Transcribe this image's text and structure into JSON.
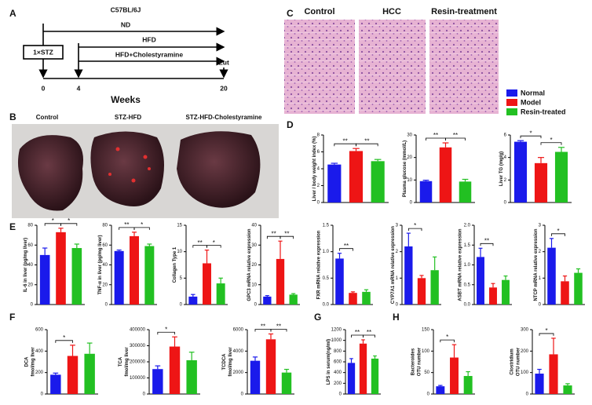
{
  "panel_labels": [
    "A",
    "B",
    "C",
    "D",
    "E",
    "F",
    "G",
    "H"
  ],
  "timeline": {
    "strain": "C57BL/6J",
    "arms": [
      "ND",
      "HFD",
      "HFD+Cholestyramine"
    ],
    "injection": "1×STZ",
    "endpoint": "Eut",
    "weeks": [
      0,
      4,
      20
    ],
    "axis_label": "Weeks"
  },
  "photos": {
    "labels": [
      "Control",
      "STZ-HFD",
      "STZ-HFD-Cholestyramine"
    ]
  },
  "histology": {
    "labels": [
      "Control",
      "HCC",
      "Resin-treatment"
    ]
  },
  "legend": {
    "series": [
      {
        "name": "Normal",
        "color": "#1a1aeb"
      },
      {
        "name": "Model",
        "color": "#ee1515"
      },
      {
        "name": "Resin-treated",
        "color": "#22c022"
      }
    ]
  },
  "chart_data": [
    {
      "type": "bar",
      "ylabel": [
        "Liver / body weight index (%)"
      ],
      "values": [
        4.5,
        6.1,
        4.9
      ],
      "errors": [
        0.15,
        0.3,
        0.2
      ],
      "ylim": [
        0,
        8
      ],
      "yticks": [
        0,
        2,
        4,
        6,
        8
      ],
      "significance": [
        {
          "label": "**",
          "from": 0,
          "to": 1
        },
        {
          "label": "**",
          "from": 1,
          "to": 2
        }
      ]
    },
    {
      "type": "bar",
      "ylabel": [
        "Plasma glucose (mmol/L)"
      ],
      "values": [
        9.5,
        24.5,
        9.3
      ],
      "errors": [
        0.4,
        2,
        1
      ],
      "ylim": [
        0,
        30
      ],
      "yticks": [
        0,
        10,
        20,
        30
      ],
      "significance": [
        {
          "label": "**",
          "from": 0,
          "to": 1
        },
        {
          "label": "**",
          "from": 1,
          "to": 2
        }
      ]
    },
    {
      "type": "bar",
      "ylabel": [
        "Liver TG (mg/g)"
      ],
      "values": [
        5.4,
        3.5,
        4.5
      ],
      "errors": [
        0.1,
        0.5,
        0.4
      ],
      "ylim": [
        0,
        6
      ],
      "yticks": [
        0,
        2,
        4,
        6
      ],
      "significance": [
        {
          "label": "*",
          "from": 0,
          "to": 1
        },
        {
          "label": "*",
          "from": 1,
          "to": 2
        }
      ]
    },
    {
      "type": "bar",
      "ylabel": [
        "IL-6 in liver (pg/mg liver)"
      ],
      "values": [
        50,
        73,
        57
      ],
      "errors": [
        7,
        4,
        4
      ],
      "ylim": [
        0,
        80
      ],
      "yticks": [
        0,
        20,
        40,
        60,
        80
      ],
      "significance": [
        {
          "label": "*",
          "from": 0,
          "to": 1
        },
        {
          "label": "*",
          "from": 1,
          "to": 2
        }
      ]
    },
    {
      "type": "bar",
      "ylabel": [
        "TNF-α in liver (pg/mg liver)"
      ],
      "values": [
        54,
        69,
        59
      ],
      "errors": [
        1,
        4,
        2
      ],
      "ylim": [
        0,
        80
      ],
      "yticks": [
        0,
        20,
        40,
        60,
        80
      ],
      "significance": [
        {
          "label": "**",
          "from": 0,
          "to": 1
        },
        {
          "label": "*",
          "from": 1,
          "to": 2
        }
      ]
    },
    {
      "type": "bar",
      "ylabel": [
        "Collagen Type 1"
      ],
      "values": [
        1.5,
        7.8,
        4
      ],
      "errors": [
        0.4,
        2.5,
        1
      ],
      "ylim": [
        0,
        15
      ],
      "yticks": [
        0,
        5,
        10,
        15
      ],
      "significance": [
        {
          "label": "**",
          "from": 0,
          "to": 1
        },
        {
          "label": "*",
          "from": 1,
          "to": 2
        }
      ]
    },
    {
      "type": "bar",
      "ylabel": [
        "GPC3 mRNA relative expression"
      ],
      "values": [
        4,
        23,
        5
      ],
      "errors": [
        0.5,
        9,
        0.5
      ],
      "ylim": [
        0,
        40
      ],
      "yticks": [
        0,
        10,
        20,
        30,
        40
      ],
      "significance": [
        {
          "label": "**",
          "from": 0,
          "to": 1
        },
        {
          "label": "**",
          "from": 1,
          "to": 2
        }
      ]
    },
    {
      "type": "bar",
      "ylabel": [
        "FXR mRNA relative expression"
      ],
      "values": [
        0.87,
        0.22,
        0.24
      ],
      "errors": [
        0.1,
        0.02,
        0.04
      ],
      "ylim": [
        0,
        1.5
      ],
      "yticks": [
        {
          "value": 0,
          "label": "0.0"
        },
        0.5,
        {
          "value": 1,
          "label": "1.0"
        },
        1.5
      ],
      "significance": [
        {
          "label": "**",
          "from": 0,
          "to": 1
        }
      ]
    },
    {
      "type": "bar",
      "ylabel": [
        "CYP7A1 mRNA relative expression"
      ],
      "values": [
        2.2,
        1.0,
        1.3
      ],
      "errors": [
        0.5,
        0.1,
        0.5
      ],
      "ylim": [
        0,
        3
      ],
      "yticks": [
        0,
        1,
        2,
        3
      ],
      "significance": [
        {
          "label": "*",
          "from": 0,
          "to": 1
        }
      ]
    },
    {
      "type": "bar",
      "ylabel": [
        "ASBT mRNA relative expression"
      ],
      "values": [
        1.2,
        0.43,
        0.62
      ],
      "errors": [
        0.22,
        0.1,
        0.1
      ],
      "ylim": [
        0,
        2
      ],
      "yticks": [
        {
          "value": 0,
          "label": "0.0"
        },
        0.5,
        {
          "value": 1,
          "label": "1.0"
        },
        1.5,
        {
          "value": 2,
          "label": "2.0"
        }
      ],
      "significance": [
        {
          "label": "**",
          "from": 0,
          "to": 1
        }
      ]
    },
    {
      "type": "bar",
      "ylabel": [
        "NTCP mRNA relative expression"
      ],
      "values": [
        2.15,
        0.88,
        1.2
      ],
      "errors": [
        0.35,
        0.2,
        0.15
      ],
      "ylim": [
        0,
        3
      ],
      "yticks": [
        0,
        1,
        2,
        3
      ],
      "significance": [
        {
          "label": "*",
          "from": 0,
          "to": 1
        }
      ]
    },
    {
      "type": "bar",
      "ylabel": [
        "DCA",
        "fmol/mg liver"
      ],
      "values": [
        180,
        355,
        375
      ],
      "errors": [
        15,
        100,
        100
      ],
      "ylim": [
        0,
        600
      ],
      "yticks": [
        0,
        200,
        400,
        600
      ],
      "significance": [
        {
          "label": "*",
          "from": 0,
          "to": 1
        }
      ]
    },
    {
      "type": "bar",
      "ylabel": [
        "TCA",
        "fmol/mg liver"
      ],
      "values": [
        155000,
        295000,
        210000
      ],
      "errors": [
        20000,
        60000,
        50000
      ],
      "ylim": [
        0,
        400000
      ],
      "yticks": [
        0,
        100000,
        200000,
        300000,
        400000
      ],
      "significance": [
        {
          "label": "*",
          "from": 0,
          "to": 1
        }
      ]
    },
    {
      "type": "bar",
      "ylabel": [
        "TCDCA",
        "fmol/mg liver"
      ],
      "values": [
        3100,
        5100,
        2000
      ],
      "errors": [
        350,
        500,
        300
      ],
      "ylim": [
        0,
        6000
      ],
      "yticks": [
        0,
        2000,
        4000,
        6000
      ],
      "significance": [
        {
          "label": "**",
          "from": 0,
          "to": 1
        },
        {
          "label": "**",
          "from": 1,
          "to": 2
        }
      ]
    },
    {
      "type": "bar",
      "ylabel": [
        "LPS in serum(ng/ml)"
      ],
      "values": [
        580,
        940,
        660
      ],
      "errors": [
        80,
        70,
        50
      ],
      "ylim": [
        0,
        1200
      ],
      "yticks": [
        0,
        200,
        400,
        600,
        800,
        1000,
        1200
      ],
      "significance": [
        {
          "label": "**",
          "from": 0,
          "to": 1
        },
        {
          "label": "**",
          "from": 1,
          "to": 2
        }
      ]
    },
    {
      "type": "bar",
      "ylabel": [
        "Bacteroides",
        "OTU number"
      ],
      "values": [
        18,
        85,
        42
      ],
      "errors": [
        2,
        30,
        10
      ],
      "ylim": [
        0,
        150
      ],
      "yticks": [
        0,
        50,
        100,
        150
      ],
      "significance": [
        {
          "label": "*",
          "from": 0,
          "to": 1
        }
      ]
    },
    {
      "type": "bar",
      "ylabel": [
        "Clostridium",
        "OTU number"
      ],
      "values": [
        95,
        185,
        40
      ],
      "errors": [
        20,
        75,
        8
      ],
      "ylim": [
        0,
        300
      ],
      "yticks": [
        0,
        100,
        200,
        300
      ],
      "significance": [
        {
          "label": "*",
          "from": 0,
          "to": 1
        }
      ]
    }
  ]
}
